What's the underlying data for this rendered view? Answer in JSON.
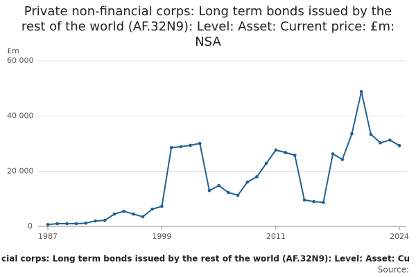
{
  "chart_data": {
    "type": "line",
    "title": "Private non-financial corps: Long term bonds issued by the rest of the world (AF.32N9): Level: Asset: Current price: £m: NSA",
    "y_unit": "£m",
    "footer": "cial corps: Long term bonds issued by the rest of the world (AF.32N9): Level: Asset: Cu",
    "source": "Source:",
    "x": [
      1987,
      1988,
      1989,
      1990,
      1991,
      1992,
      1993,
      1994,
      1995,
      1996,
      1997,
      1998,
      1999,
      2000,
      2001,
      2002,
      2003,
      2004,
      2005,
      2006,
      2007,
      2008,
      2009,
      2010,
      2011,
      2012,
      2013,
      2014,
      2015,
      2016,
      2017,
      2018,
      2019,
      2020,
      2021,
      2022,
      2023,
      2024
    ],
    "series": [
      {
        "color": "#206095",
        "values": [
          700,
          1000,
          1000,
          1000,
          1200,
          2000,
          2200,
          4500,
          5500,
          4500,
          3500,
          6300,
          7300,
          28600,
          28900,
          29400,
          30100,
          13000,
          14800,
          12300,
          11300,
          16100,
          18000,
          22900,
          27700,
          26800,
          25800,
          9600,
          9000,
          8700,
          26300,
          24300,
          33600,
          48900,
          33400,
          30300,
          31300,
          29300
        ]
      }
    ],
    "xlim": [
      1987,
      2024
    ],
    "xticks": [
      1987,
      1999,
      2011,
      2024
    ],
    "ylim": [
      0,
      60000
    ],
    "yticks": [
      0,
      {
        "value": 20000,
        "label": "20 000"
      },
      {
        "value": 40000,
        "label": "40 000"
      },
      {
        "value": 60000,
        "label": "60 000"
      }
    ],
    "grid": true
  }
}
